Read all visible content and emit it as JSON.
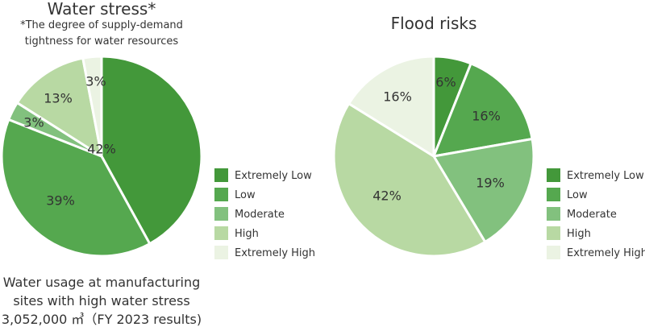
{
  "chart_data": [
    {
      "type": "pie",
      "title": "Water stress*",
      "subtitle": [
        "*The degree of supply-demand",
        "tightness for water resources"
      ],
      "categories": [
        "Extremely Low",
        "Low",
        "Moderate",
        "High",
        "Extremely High"
      ],
      "values": [
        42,
        39,
        3,
        13,
        3
      ],
      "data_labels": [
        "42%",
        "39%",
        "3%",
        "13%",
        "3%"
      ],
      "legend_position": "right",
      "note": [
        "Water usage at manufacturing",
        "sites with high water stress",
        "3,052,000 ㎥（FY 2023 results)"
      ]
    },
    {
      "type": "pie",
      "title": "Flood risks",
      "categories": [
        "Extremely Low",
        "Low",
        "Moderate",
        "High",
        "Extremely High"
      ],
      "values": [
        6,
        16,
        19,
        42,
        16
      ],
      "data_labels": [
        "6%",
        "16%",
        "19%",
        "42%",
        "16%"
      ],
      "legend_position": "right"
    }
  ],
  "colors": [
    "#43983a",
    "#55a84f",
    "#82c17e",
    "#b8d9a3",
    "#ebf3e3"
  ]
}
